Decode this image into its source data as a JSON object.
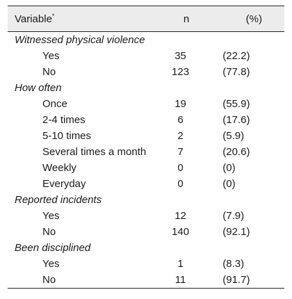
{
  "table": {
    "headers": {
      "variable": "Variable",
      "variable_mark": "*",
      "n": "n",
      "pct": "(%)"
    },
    "rows": [
      {
        "type": "category",
        "label": "Witnessed physical violence",
        "n": "",
        "pct": ""
      },
      {
        "type": "item",
        "label": "Yes",
        "n": "35",
        "pct": "(22.2)"
      },
      {
        "type": "item",
        "label": "No",
        "n": "123",
        "pct": "(77.8)"
      },
      {
        "type": "category",
        "label": "How often",
        "n": "",
        "pct": ""
      },
      {
        "type": "item",
        "label": "Once",
        "n": "19",
        "pct": "(55.9)"
      },
      {
        "type": "item",
        "label": "2-4 times",
        "n": "6",
        "pct": "(17.6)"
      },
      {
        "type": "item",
        "label": "5-10 times",
        "n": "2",
        "pct": "(5.9)"
      },
      {
        "type": "item",
        "label": "Several times a month",
        "n": "7",
        "pct": "(20.6)"
      },
      {
        "type": "item",
        "label": "Weekly",
        "n": "0",
        "pct": "(0)"
      },
      {
        "type": "item",
        "label": "Everyday",
        "n": "0",
        "pct": "(0)"
      },
      {
        "type": "category",
        "label": "Reported incidents",
        "n": "",
        "pct": ""
      },
      {
        "type": "item",
        "label": "Yes",
        "n": "12",
        "pct": "(7.9)"
      },
      {
        "type": "item",
        "label": "No",
        "n": "140",
        "pct": "(92.1)"
      },
      {
        "type": "category",
        "label": "Been disciplined",
        "n": "",
        "pct": ""
      },
      {
        "type": "item",
        "label": "Yes",
        "n": "1",
        "pct": "(8.3)"
      },
      {
        "type": "item",
        "label": "No",
        "n": "11",
        "pct": "(91.7)"
      }
    ]
  },
  "colors": {
    "header_background": "#ececec",
    "rule": "#222222",
    "text": "#1a1a1a"
  }
}
